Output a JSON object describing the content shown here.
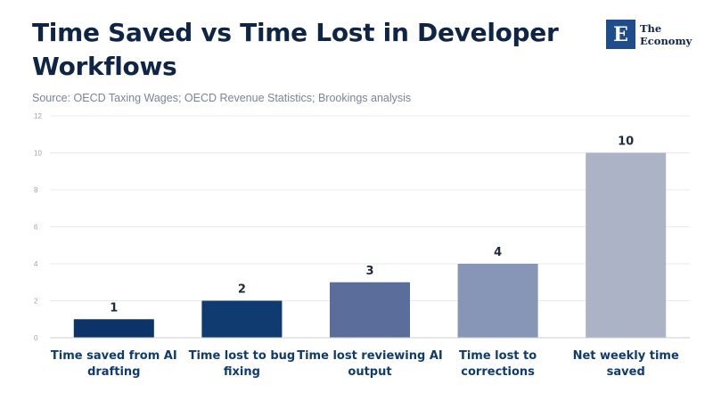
{
  "header": {
    "title": "Time Saved vs Time Lost in Developer Workflows",
    "source": "Source: OECD Taxing Wages; OECD Revenue Statistics; Brookings analysis"
  },
  "logo": {
    "mark": "E",
    "line1": "The",
    "line2": "Economy"
  },
  "colors": {
    "title": "#0f2545",
    "grid": "#e6e9ee",
    "axis": "#c9ced6",
    "bars": [
      "#0d3468",
      "#0f3b70",
      "#5b6d9a",
      "#8795b6",
      "#acb3c6"
    ]
  },
  "chart_data": {
    "type": "bar",
    "title": "Time Saved vs Time Lost in Developer Workflows",
    "xlabel": "",
    "ylabel": "",
    "ylim": [
      0,
      12
    ],
    "yticks": [
      0,
      2,
      4,
      6,
      8,
      10,
      12
    ],
    "grid": true,
    "categories": [
      "Time saved from AI drafting",
      "Time lost to bug fixing",
      "Time lost reviewing AI output",
      "Time lost to corrections",
      "Net weekly time saved"
    ],
    "category_lines": [
      [
        "Time saved from AI",
        "drafting"
      ],
      [
        "Time lost to bug",
        "fixing"
      ],
      [
        "Time lost reviewing AI",
        "output"
      ],
      [
        "Time lost to",
        "corrections"
      ],
      [
        "Net weekly time",
        "saved"
      ]
    ],
    "values": [
      1,
      2,
      3,
      4,
      10
    ],
    "data_labels": [
      "1",
      "2",
      "3",
      "4",
      "10"
    ]
  }
}
